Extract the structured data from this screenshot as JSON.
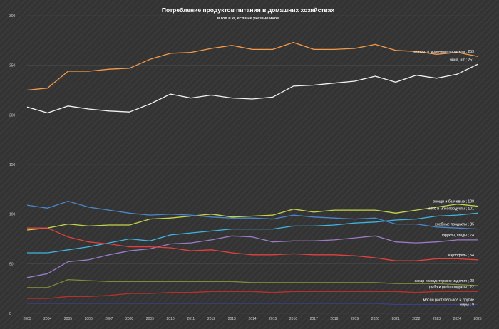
{
  "chart_data": {
    "type": "line",
    "title": "Потребление продуктов питания в домашних хозяйствах",
    "subtitle": "в год в кг, если не указано иное",
    "xlabel": "",
    "ylabel": "",
    "ylim": [
      0,
      300
    ],
    "yticks": [
      0,
      50,
      100,
      150,
      200,
      250,
      300
    ],
    "grid": true,
    "x": [
      "2003",
      "2004",
      "2005",
      "2006",
      "2007",
      "2008",
      "2009",
      "2010",
      "2011",
      "2012",
      "2013",
      "2014",
      "2015",
      "2016",
      "2017",
      "2018",
      "2019",
      "2020",
      "2021",
      "2022",
      "2023",
      "2024",
      "2025"
    ],
    "series": [
      {
        "name": "молоко и молочные продукты",
        "label": "молоко и молочные продукты ; 259",
        "color": "#f39a4a",
        "values": [
          225,
          227,
          244,
          244,
          246,
          247,
          256,
          262,
          263,
          267,
          270,
          266,
          266,
          273,
          266,
          266,
          267,
          271,
          265,
          264,
          261,
          263,
          259
        ]
      },
      {
        "name": "яйца, шт",
        "label": "яйца, шт ; 251",
        "color": "#f2f2f2",
        "values": [
          208,
          202,
          209,
          206,
          204,
          203,
          211,
          221,
          217,
          220,
          217,
          216,
          218,
          229,
          230,
          232,
          234,
          239,
          233,
          240,
          237,
          241,
          251
        ]
      },
      {
        "name": "овощи и бахчевые",
        "label": "овощи и бахчевые ; 108",
        "color": "#c4d44a",
        "values": [
          84,
          86,
          90,
          88,
          89,
          89,
          95,
          96,
          98,
          100,
          97,
          98,
          99,
          105,
          102,
          104,
          104,
          104,
          101,
          104,
          107,
          110,
          108
        ]
      },
      {
        "name": "мясо и мясопродукты",
        "label": "мясо и мясопродукты ; 101",
        "color": "#3fb4e0",
        "values": [
          61,
          61,
          64,
          67,
          71,
          75,
          73,
          79,
          81,
          83,
          85,
          85,
          85,
          88,
          88,
          89,
          91,
          92,
          94,
          95,
          98,
          99,
          101
        ]
      },
      {
        "name": "хлебные продукты",
        "label": "хлебные продукты ; 85",
        "color": "#4a86c8",
        "values": [
          109,
          106,
          113,
          107,
          104,
          101,
          99,
          100,
          99,
          97,
          96,
          96,
          95,
          99,
          97,
          96,
          95,
          96,
          90,
          90,
          87,
          86,
          85
        ]
      },
      {
        "name": "фрукты, ягоды",
        "label": "фрукты, ягоды ; 74",
        "color": "#9b7bc6",
        "values": [
          36,
          40,
          52,
          54,
          59,
          63,
          65,
          70,
          71,
          74,
          78,
          77,
          72,
          73,
          73,
          74,
          76,
          78,
          72,
          71,
          72,
          74,
          74
        ]
      },
      {
        "name": "картофель",
        "label": "картофель ; 54",
        "color": "#e0413f",
        "values": [
          86,
          86,
          77,
          72,
          70,
          67,
          67,
          66,
          63,
          64,
          61,
          59,
          59,
          60,
          59,
          59,
          58,
          56,
          53,
          53,
          55,
          55,
          54
        ]
      },
      {
        "name": "сахар и кондитерские изделия",
        "label": "сахар и кондитерские изделия ; 28",
        "color": "#7d8a3a",
        "values": [
          26,
          26,
          34,
          33,
          32,
          32,
          32,
          32,
          32,
          32,
          32,
          31,
          31,
          31,
          31,
          31,
          31,
          31,
          30,
          30,
          30,
          29,
          28
        ]
      },
      {
        "name": "рыба и рыбопродукты",
        "label": "рыба и рыбопродукты ; 22",
        "color": "#b8302e",
        "values": [
          15,
          15,
          17,
          17,
          18,
          20,
          20,
          21,
          21,
          22,
          22,
          22,
          21,
          22,
          22,
          22,
          22,
          22,
          22,
          21,
          22,
          22,
          22
        ]
      },
      {
        "name": "масло растительное и другие жиры",
        "label_lines": [
          "масло растительное и другие",
          "жиры ; 9"
        ],
        "color": "#3a3f8a",
        "values": [
          10,
          10,
          10,
          10,
          10,
          10,
          10,
          10,
          10,
          10,
          10,
          10,
          10,
          10,
          10,
          10,
          10,
          10,
          9,
          9,
          9,
          9,
          9
        ]
      }
    ]
  }
}
